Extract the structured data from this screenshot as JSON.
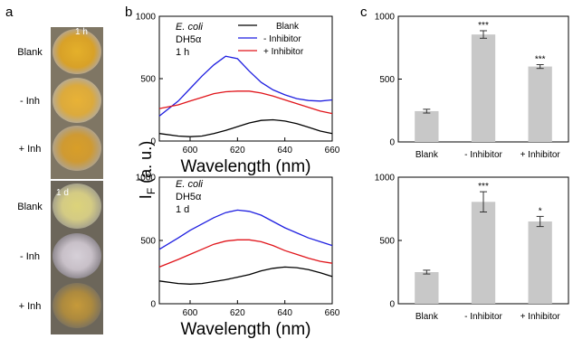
{
  "panel_labels": {
    "a": "a",
    "b": "b",
    "c": "c"
  },
  "photos": {
    "top_time": "1 h",
    "bottom_time": "1 d",
    "row_labels": [
      "Blank",
      "- Inh",
      "+ Inh"
    ]
  },
  "spectra": {
    "y_label": "I",
    "y_label_sub": "F",
    "y_label_unit": " (a. u.)",
    "legend": {
      "blank": "Blank",
      "minus": "- Inhibitor",
      "plus": "+ Inhibitor"
    },
    "colors": {
      "blank": "#000000",
      "minus": "#1f1fe0",
      "plus": "#e0141a"
    },
    "top": {
      "organism": "E. coli",
      "strain": "DH5α",
      "time": "1 h"
    },
    "bottom": {
      "organism": "E. coli",
      "strain": "DH5α",
      "time": "1 d"
    }
  },
  "chart_data": [
    {
      "type": "line",
      "xlabel": "Wavelength (nm)",
      "ylabel": "IF (a. u.)",
      "xlim": [
        587,
        660
      ],
      "ylim": [
        0,
        1000
      ],
      "xticks": [
        600,
        620,
        640,
        660
      ],
      "yticks": [
        0,
        500,
        1000
      ],
      "legend_position": "top-right",
      "series": [
        {
          "name": "Blank",
          "color": "#000000",
          "points": [
            [
              587,
              60
            ],
            [
              595,
              40
            ],
            [
              600,
              35
            ],
            [
              605,
              40
            ],
            [
              610,
              60
            ],
            [
              615,
              85
            ],
            [
              620,
              115
            ],
            [
              625,
              145
            ],
            [
              630,
              165
            ],
            [
              635,
              170
            ],
            [
              640,
              160
            ],
            [
              645,
              140
            ],
            [
              650,
              110
            ],
            [
              655,
              80
            ],
            [
              660,
              60
            ]
          ]
        },
        {
          "name": "- Inhibitor",
          "color": "#1f1fe0",
          "points": [
            [
              587,
              200
            ],
            [
              595,
              320
            ],
            [
              600,
              420
            ],
            [
              605,
              520
            ],
            [
              610,
              610
            ],
            [
              615,
              680
            ],
            [
              620,
              660
            ],
            [
              625,
              560
            ],
            [
              630,
              470
            ],
            [
              635,
              410
            ],
            [
              640,
              370
            ],
            [
              645,
              340
            ],
            [
              650,
              325
            ],
            [
              655,
              320
            ],
            [
              660,
              330
            ]
          ]
        },
        {
          "name": "+ Inhibitor",
          "color": "#e0141a",
          "points": [
            [
              587,
              260
            ],
            [
              595,
              290
            ],
            [
              600,
              320
            ],
            [
              605,
              350
            ],
            [
              610,
              380
            ],
            [
              615,
              395
            ],
            [
              620,
              400
            ],
            [
              625,
              400
            ],
            [
              630,
              385
            ],
            [
              635,
              360
            ],
            [
              640,
              330
            ],
            [
              645,
              300
            ],
            [
              650,
              270
            ],
            [
              655,
              240
            ],
            [
              660,
              220
            ]
          ]
        }
      ]
    },
    {
      "type": "line",
      "xlabel": "Wavelength (nm)",
      "ylabel": "IF (a. u.)",
      "xlim": [
        587,
        660
      ],
      "ylim": [
        0,
        1000
      ],
      "xticks": [
        600,
        620,
        640,
        660
      ],
      "yticks": [
        0,
        500,
        1000
      ],
      "series": [
        {
          "name": "Blank",
          "color": "#000000",
          "points": [
            [
              587,
              180
            ],
            [
              595,
              160
            ],
            [
              600,
              155
            ],
            [
              605,
              160
            ],
            [
              610,
              175
            ],
            [
              615,
              190
            ],
            [
              620,
              210
            ],
            [
              625,
              230
            ],
            [
              630,
              260
            ],
            [
              635,
              280
            ],
            [
              640,
              290
            ],
            [
              645,
              285
            ],
            [
              650,
              270
            ],
            [
              655,
              245
            ],
            [
              660,
              215
            ]
          ]
        },
        {
          "name": "- Inhibitor",
          "color": "#1f1fe0",
          "points": [
            [
              587,
              430
            ],
            [
              595,
              520
            ],
            [
              600,
              580
            ],
            [
              605,
              630
            ],
            [
              610,
              680
            ],
            [
              615,
              720
            ],
            [
              620,
              740
            ],
            [
              625,
              730
            ],
            [
              630,
              700
            ],
            [
              635,
              650
            ],
            [
              640,
              600
            ],
            [
              645,
              560
            ],
            [
              650,
              520
            ],
            [
              655,
              490
            ],
            [
              660,
              460
            ]
          ]
        },
        {
          "name": "+ Inhibitor",
          "color": "#e0141a",
          "points": [
            [
              587,
              290
            ],
            [
              595,
              350
            ],
            [
              600,
              390
            ],
            [
              605,
              430
            ],
            [
              610,
              470
            ],
            [
              615,
              495
            ],
            [
              620,
              505
            ],
            [
              625,
              505
            ],
            [
              630,
              490
            ],
            [
              635,
              460
            ],
            [
              640,
              420
            ],
            [
              645,
              390
            ],
            [
              650,
              360
            ],
            [
              655,
              335
            ],
            [
              660,
              320
            ]
          ]
        }
      ]
    },
    {
      "type": "bar",
      "categories": [
        "Blank",
        "- Inhibitor",
        "+ Inhibitor"
      ],
      "values": [
        245,
        855,
        600
      ],
      "errors": [
        15,
        30,
        15
      ],
      "significance": [
        "",
        "***",
        "***"
      ],
      "ylim": [
        0,
        1000
      ],
      "yticks": [
        0,
        500,
        1000
      ],
      "color": "#c8c8c8"
    },
    {
      "type": "bar",
      "categories": [
        "Blank",
        "- Inhibitor",
        "+ Inhibitor"
      ],
      "values": [
        250,
        805,
        650
      ],
      "errors": [
        15,
        80,
        40
      ],
      "significance": [
        "",
        "***",
        "*"
      ],
      "ylim": [
        0,
        1000
      ],
      "yticks": [
        0,
        500,
        1000
      ],
      "color": "#c8c8c8"
    }
  ]
}
